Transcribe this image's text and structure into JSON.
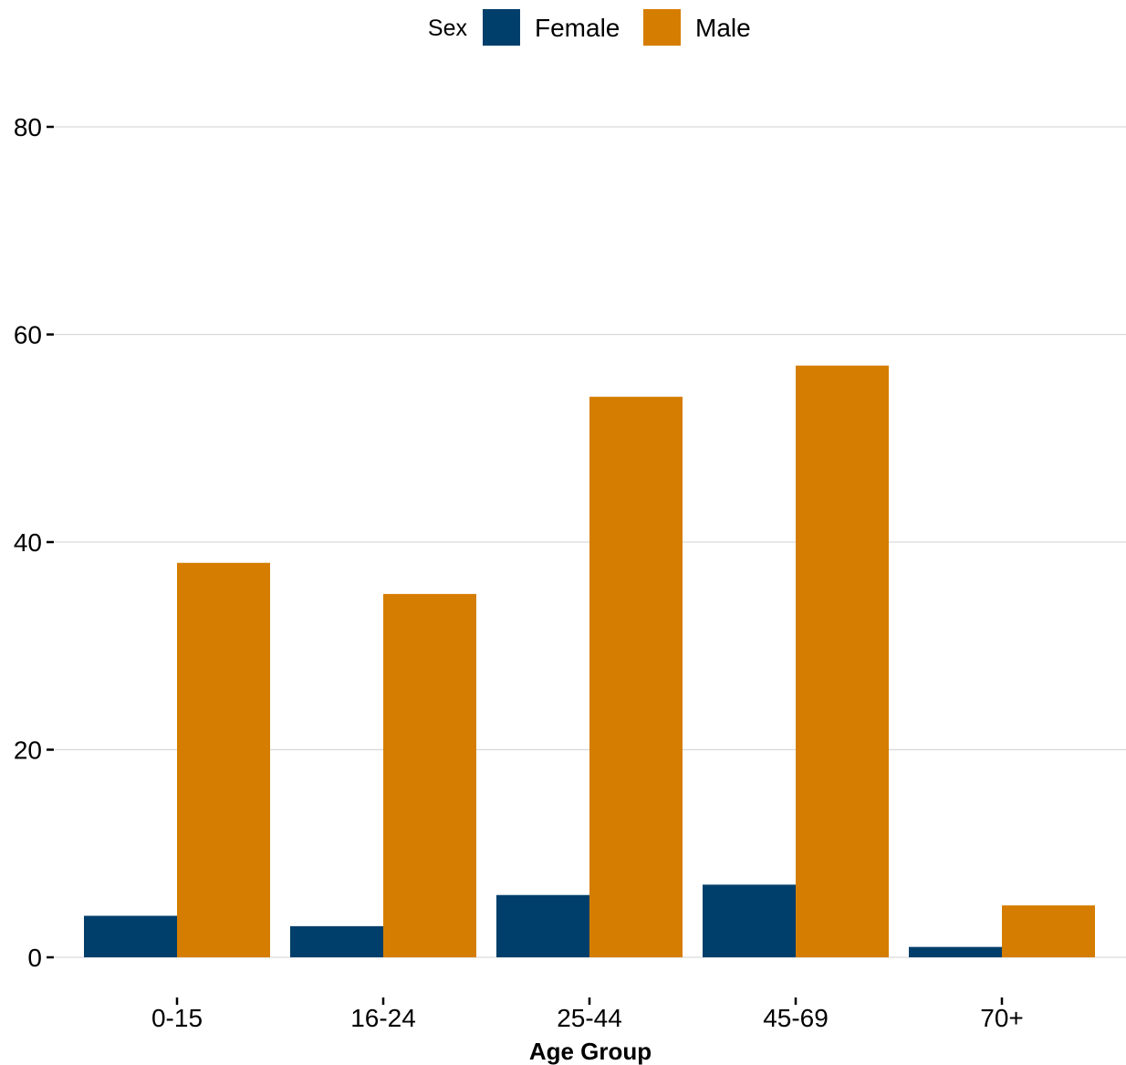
{
  "chart_data": {
    "type": "bar",
    "categories": [
      "0-15",
      "16-24",
      "25-44",
      "45-69",
      "70+"
    ],
    "series": [
      {
        "name": "Female",
        "color": "#003f6b",
        "values": [
          4,
          3,
          6,
          7,
          1
        ]
      },
      {
        "name": "Male",
        "color": "#d57d00",
        "values": [
          38,
          35,
          54,
          57,
          5
        ]
      }
    ],
    "xlabel": "Age Group",
    "ylabel": "",
    "ylim": [
      0,
      80
    ],
    "yticks": [
      0,
      20,
      40,
      60,
      80
    ],
    "grid": "horizontal",
    "legend": {
      "title": "Sex",
      "position": "top"
    }
  }
}
